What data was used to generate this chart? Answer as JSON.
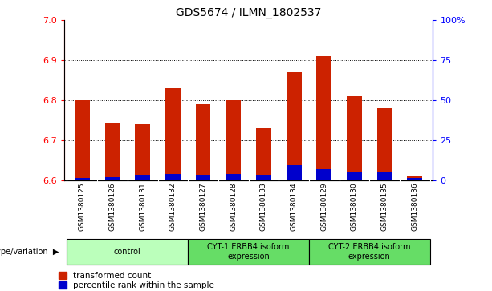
{
  "title": "GDS5674 / ILMN_1802537",
  "samples": [
    "GSM1380125",
    "GSM1380126",
    "GSM1380131",
    "GSM1380132",
    "GSM1380127",
    "GSM1380128",
    "GSM1380133",
    "GSM1380134",
    "GSM1380129",
    "GSM1380130",
    "GSM1380135",
    "GSM1380136"
  ],
  "transformed_counts": [
    6.8,
    6.745,
    6.74,
    6.83,
    6.79,
    6.8,
    6.73,
    6.87,
    6.91,
    6.81,
    6.78,
    6.61
  ],
  "percentile_ranks": [
    1.5,
    2.0,
    3.5,
    4.0,
    3.5,
    4.0,
    3.5,
    9.5,
    7.0,
    5.5,
    5.5,
    1.5
  ],
  "ylim_left": [
    6.6,
    7.0
  ],
  "ylim_right": [
    0,
    100
  ],
  "yticks_left": [
    6.6,
    6.7,
    6.8,
    6.9,
    7.0
  ],
  "yticks_right": [
    0,
    25,
    50,
    75,
    100
  ],
  "ytick_right_labels": [
    "0",
    "25",
    "50",
    "75",
    "100%"
  ],
  "dotted_lines": [
    6.7,
    6.8,
    6.9
  ],
  "bar_color_red": "#CC2200",
  "bar_color_blue": "#0000CC",
  "bar_bottom": 6.6,
  "percentile_scale": 0.004,
  "group_info": [
    {
      "start": 0,
      "end": 3,
      "label": "control",
      "color": "#bbffbb"
    },
    {
      "start": 4,
      "end": 7,
      "label": "CYT-1 ERBB4 isoform\nexpression",
      "color": "#66dd66"
    },
    {
      "start": 8,
      "end": 11,
      "label": "CYT-2 ERBB4 isoform\nexpression",
      "color": "#66dd66"
    }
  ],
  "legend_red": "transformed count",
  "legend_blue": "percentile rank within the sample",
  "genotype_label": "genotype/variation",
  "names_bg": "#d8d8d8",
  "plot_bg": "#ffffff"
}
